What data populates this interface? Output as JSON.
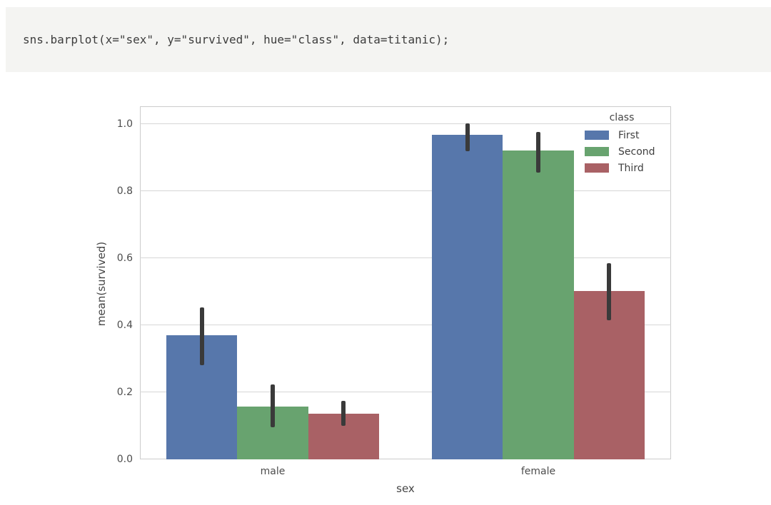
{
  "code_cell": {
    "code": "sns.barplot(x=\"sex\", y=\"survived\", hue=\"class\", data=titanic);"
  },
  "chart_data": {
    "type": "bar",
    "categories": [
      "male",
      "female"
    ],
    "series": [
      {
        "name": "First",
        "color": "#5777ab",
        "values": [
          0.37,
          0.968
        ],
        "ci": [
          [
            0.281,
            0.454
          ],
          [
            0.92,
            1.002
          ]
        ]
      },
      {
        "name": "Second",
        "color": "#68a36f",
        "values": [
          0.158,
          0.921
        ],
        "ci": [
          [
            0.095,
            0.224
          ],
          [
            0.855,
            0.976
          ]
        ]
      },
      {
        "name": "Third",
        "color": "#a96165",
        "values": [
          0.136,
          0.503
        ],
        "ci": [
          [
            0.101,
            0.175
          ],
          [
            0.415,
            0.585
          ]
        ]
      }
    ],
    "title": "",
    "xlabel": "sex",
    "ylabel": "mean(survived)",
    "yticks": [
      0.0,
      0.2,
      0.4,
      0.6,
      0.8,
      1.0
    ],
    "ytick_labels": [
      "0.0",
      "0.2",
      "0.4",
      "0.6",
      "0.8",
      "1.0"
    ],
    "ylim": [
      0,
      1.053
    ],
    "legend_title": "class",
    "legend_position": "upper right",
    "grid": true,
    "errorbar_color": "#3a3a3a",
    "gridline_color": "#d6d6d6"
  }
}
